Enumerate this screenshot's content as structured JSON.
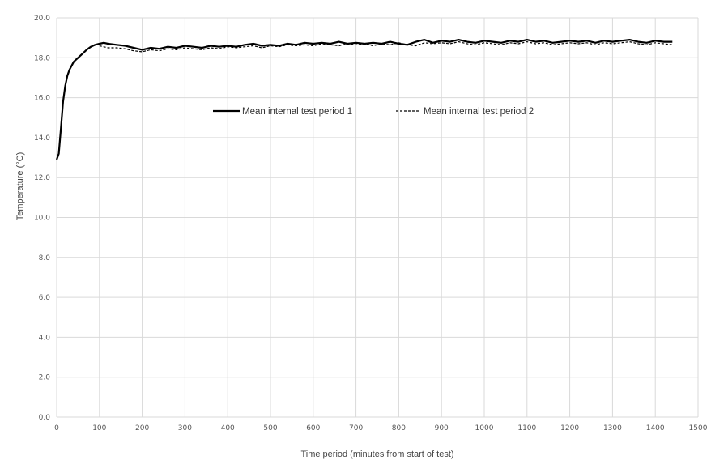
{
  "chart_data": {
    "type": "line",
    "xlabel": "Time period (minutes from start of test)",
    "ylabel": "Temperature (°C)",
    "xlim": [
      0,
      1500
    ],
    "ylim": [
      0,
      20
    ],
    "x_ticks": [
      "0",
      "100",
      "200",
      "300",
      "400",
      "500",
      "600",
      "700",
      "800",
      "900",
      "1000",
      "1100",
      "1200",
      "1300",
      "1400",
      "1500"
    ],
    "y_ticks": [
      "0.0",
      "2.0",
      "4.0",
      "6.0",
      "8.0",
      "10.0",
      "12.0",
      "14.0",
      "16.0",
      "18.0",
      "20.0"
    ],
    "grid": true,
    "legend_position": "center-top inside plot",
    "series": [
      {
        "name": "Mean internal test period 1",
        "style": "solid",
        "color": "#000000",
        "x": [
          0,
          5,
          10,
          15,
          20,
          25,
          30,
          40,
          50,
          60,
          70,
          80,
          90,
          100,
          110,
          120,
          140,
          160,
          180,
          200,
          220,
          240,
          260,
          280,
          300,
          320,
          340,
          360,
          380,
          400,
          420,
          440,
          460,
          480,
          500,
          520,
          540,
          560,
          580,
          600,
          620,
          640,
          660,
          680,
          700,
          720,
          740,
          760,
          780,
          800,
          820,
          840,
          860,
          880,
          900,
          920,
          940,
          960,
          980,
          1000,
          1020,
          1040,
          1060,
          1080,
          1100,
          1120,
          1140,
          1160,
          1180,
          1200,
          1220,
          1240,
          1260,
          1280,
          1300,
          1320,
          1340,
          1360,
          1380,
          1400,
          1420,
          1440
        ],
        "y": [
          12.9,
          13.2,
          14.5,
          15.8,
          16.6,
          17.1,
          17.4,
          17.8,
          18.0,
          18.2,
          18.4,
          18.55,
          18.65,
          18.7,
          18.75,
          18.7,
          18.65,
          18.6,
          18.5,
          18.4,
          18.5,
          18.45,
          18.55,
          18.5,
          18.6,
          18.55,
          18.5,
          18.6,
          18.55,
          18.6,
          18.55,
          18.65,
          18.7,
          18.6,
          18.65,
          18.6,
          18.7,
          18.65,
          18.75,
          18.7,
          18.75,
          18.7,
          18.8,
          18.7,
          18.75,
          18.7,
          18.75,
          18.7,
          18.8,
          18.7,
          18.65,
          18.8,
          18.9,
          18.75,
          18.85,
          18.8,
          18.9,
          18.8,
          18.75,
          18.85,
          18.8,
          18.75,
          18.85,
          18.8,
          18.9,
          18.8,
          18.85,
          18.75,
          18.8,
          18.85,
          18.8,
          18.85,
          18.75,
          18.85,
          18.8,
          18.85,
          18.9,
          18.8,
          18.75,
          18.85,
          18.8,
          18.8
        ]
      },
      {
        "name": "Mean internal test period 2",
        "style": "dashed",
        "color": "#000000",
        "x": [
          100,
          110,
          120,
          140,
          160,
          180,
          200,
          220,
          240,
          260,
          280,
          300,
          320,
          340,
          360,
          380,
          400,
          420,
          440,
          460,
          480,
          500,
          520,
          540,
          560,
          580,
          600,
          620,
          640,
          660,
          680,
          700,
          720,
          740,
          760,
          780,
          800,
          820,
          840,
          860,
          880,
          900,
          920,
          940,
          960,
          980,
          1000,
          1020,
          1040,
          1060,
          1080,
          1100,
          1120,
          1140,
          1160,
          1180,
          1200,
          1220,
          1240,
          1260,
          1280,
          1300,
          1320,
          1340,
          1360,
          1380,
          1400,
          1420,
          1440
        ],
        "y": [
          18.6,
          18.55,
          18.5,
          18.5,
          18.45,
          18.35,
          18.3,
          18.4,
          18.35,
          18.45,
          18.4,
          18.5,
          18.45,
          18.4,
          18.5,
          18.45,
          18.55,
          18.5,
          18.55,
          18.6,
          18.5,
          18.6,
          18.55,
          18.65,
          18.6,
          18.65,
          18.6,
          18.7,
          18.65,
          18.6,
          18.7,
          18.65,
          18.7,
          18.6,
          18.7,
          18.65,
          18.75,
          18.65,
          18.6,
          18.75,
          18.7,
          18.75,
          18.7,
          18.8,
          18.7,
          18.65,
          18.75,
          18.7,
          18.65,
          18.75,
          18.7,
          18.8,
          18.7,
          18.75,
          18.65,
          18.7,
          18.75,
          18.7,
          18.75,
          18.65,
          18.75,
          18.7,
          18.75,
          18.8,
          18.7,
          18.65,
          18.75,
          18.7,
          18.65
        ]
      }
    ]
  }
}
